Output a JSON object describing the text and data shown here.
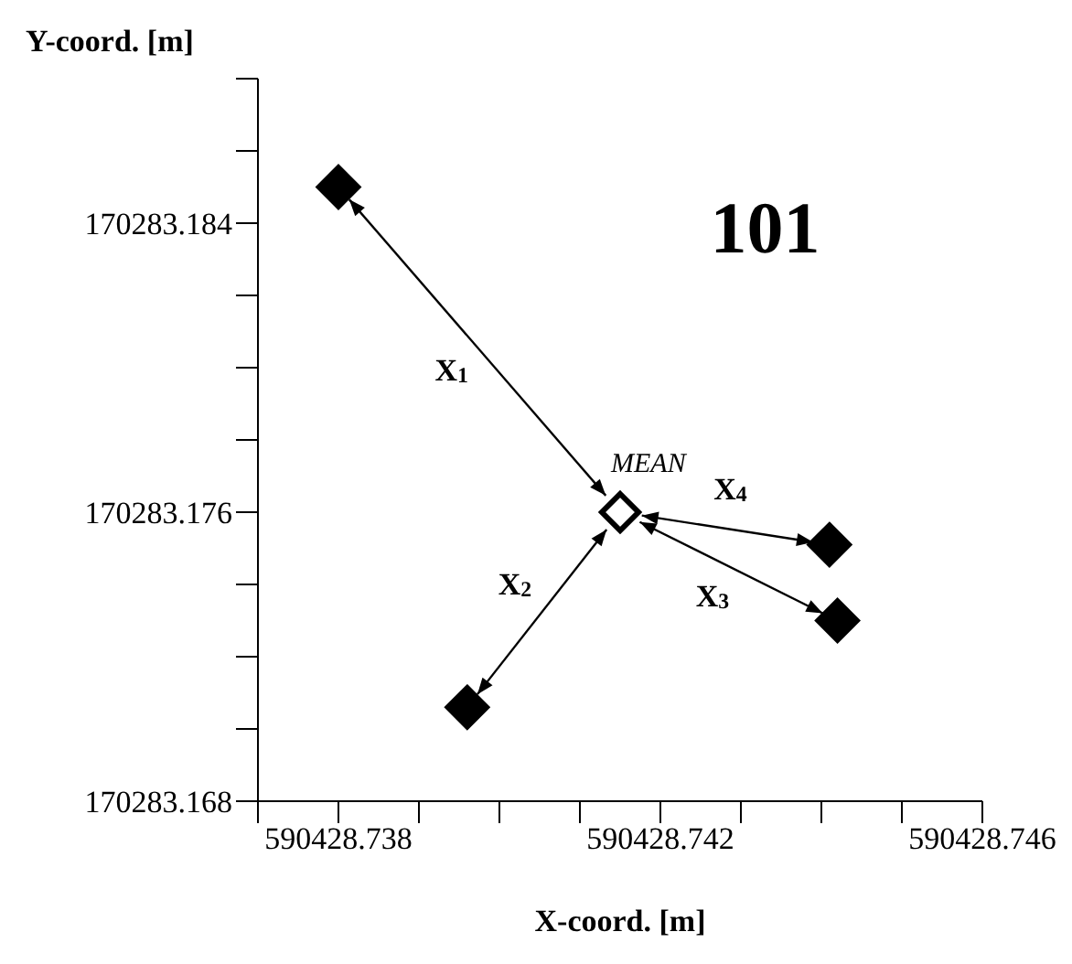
{
  "chart_data": {
    "type": "scatter",
    "xlabel": "X-coord. [m]",
    "ylabel": "Y-coord. [m]",
    "xlim": [
      590428.737,
      590428.746
    ],
    "xticks": [
      {
        "value": 590428.737,
        "label": null
      },
      590428.738,
      {
        "value": 590428.739,
        "label": null
      },
      {
        "value": 590428.74,
        "label": null
      },
      {
        "value": 590428.741,
        "label": null
      },
      590428.742,
      {
        "value": 590428.743,
        "label": null
      },
      {
        "value": 590428.744,
        "label": null
      },
      {
        "value": 590428.745,
        "label": null
      },
      590428.746
    ],
    "ylim": [
      170283.168,
      170283.188
    ],
    "yticks": [
      170283.168,
      {
        "value": 170283.17,
        "label": null
      },
      {
        "value": 170283.172,
        "label": null
      },
      {
        "value": 170283.174,
        "label": null
      },
      170283.176,
      {
        "value": 170283.178,
        "label": null
      },
      {
        "value": 170283.18,
        "label": null
      },
      {
        "value": 170283.182,
        "label": null
      },
      170283.184,
      {
        "value": 170283.186,
        "label": null
      },
      {
        "value": 170283.188,
        "label": null
      }
    ],
    "marker": "diamond",
    "grid": false,
    "legend": false,
    "series": [
      {
        "color": "#000000",
        "x": [
          590428.738,
          590428.7396,
          590428.7442,
          590428.7441
        ],
        "values": [
          170283.185,
          170283.1706,
          170283.173,
          170283.1751
        ]
      },
      {
        "name": "MEAN",
        "color": "#000000",
        "x": [
          590428.7415
        ],
        "values": [
          170283.176
        ]
      }
    ],
    "annotations": [
      "101",
      "X$_{1}$",
      "X$_{2}$",
      "X$_{3}$",
      "X$_{4}$"
    ]
  }
}
